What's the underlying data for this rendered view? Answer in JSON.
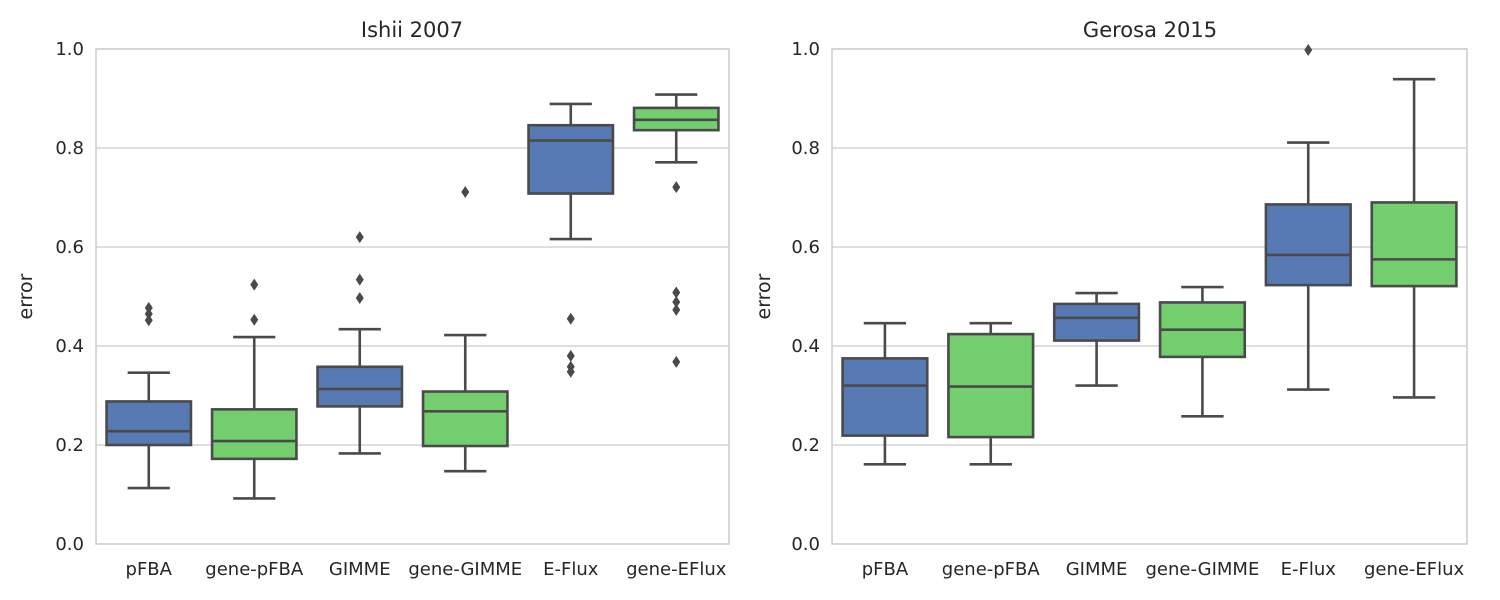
{
  "chart_data": [
    {
      "type": "box",
      "title": "Ishii 2007",
      "xlabel": "",
      "ylabel": "error",
      "ylim": [
        0,
        1
      ],
      "yticks": [
        "0.0",
        "0.2",
        "0.4",
        "0.6",
        "0.8",
        "1.0"
      ],
      "grid": "horizontal",
      "categories": [
        "pFBA",
        "gene-pFBA",
        "GIMME",
        "gene-GIMME",
        "E-Flux",
        "gene-EFlux"
      ],
      "colors": [
        "#4c72b0",
        "#6acc65",
        "#4c72b0",
        "#6acc65",
        "#4c72b0",
        "#6acc65"
      ],
      "boxes": [
        {
          "whisker_low": 0.113,
          "q1": 0.2,
          "median": 0.228,
          "q3": 0.288,
          "whisker_high": 0.346,
          "outliers": [
            0.452,
            0.465,
            0.477
          ]
        },
        {
          "whisker_low": 0.092,
          "q1": 0.172,
          "median": 0.208,
          "q3": 0.272,
          "whisker_high": 0.418,
          "outliers": [
            0.453,
            0.524
          ]
        },
        {
          "whisker_low": 0.183,
          "q1": 0.278,
          "median": 0.313,
          "q3": 0.358,
          "whisker_high": 0.434,
          "outliers": [
            0.497,
            0.534,
            0.62
          ]
        },
        {
          "whisker_low": 0.147,
          "q1": 0.198,
          "median": 0.268,
          "q3": 0.308,
          "whisker_high": 0.422,
          "outliers": [
            0.711
          ]
        },
        {
          "whisker_low": 0.616,
          "q1": 0.708,
          "median": 0.815,
          "q3": 0.846,
          "whisker_high": 0.889,
          "outliers": [
            0.348,
            0.358,
            0.38,
            0.455
          ]
        },
        {
          "whisker_low": 0.771,
          "q1": 0.836,
          "median": 0.857,
          "q3": 0.881,
          "whisker_high": 0.908,
          "outliers": [
            0.368,
            0.473,
            0.489,
            0.508,
            0.721
          ]
        }
      ]
    },
    {
      "type": "box",
      "title": "Gerosa 2015",
      "xlabel": "",
      "ylabel": "error",
      "ylim": [
        0,
        1
      ],
      "yticks": [
        "0.0",
        "0.2",
        "0.4",
        "0.6",
        "0.8",
        "1.0"
      ],
      "grid": "horizontal",
      "categories": [
        "pFBA",
        "gene-pFBA",
        "GIMME",
        "gene-GIMME",
        "E-Flux",
        "gene-EFlux"
      ],
      "colors": [
        "#4c72b0",
        "#6acc65",
        "#4c72b0",
        "#6acc65",
        "#4c72b0",
        "#6acc65"
      ],
      "boxes": [
        {
          "whisker_low": 0.161,
          "q1": 0.219,
          "median": 0.32,
          "q3": 0.375,
          "whisker_high": 0.446,
          "outliers": []
        },
        {
          "whisker_low": 0.161,
          "q1": 0.216,
          "median": 0.318,
          "q3": 0.424,
          "whisker_high": 0.446,
          "outliers": []
        },
        {
          "whisker_low": 0.32,
          "q1": 0.411,
          "median": 0.457,
          "q3": 0.485,
          "whisker_high": 0.507,
          "outliers": []
        },
        {
          "whisker_low": 0.258,
          "q1": 0.378,
          "median": 0.433,
          "q3": 0.488,
          "whisker_high": 0.519,
          "outliers": []
        },
        {
          "whisker_low": 0.312,
          "q1": 0.523,
          "median": 0.584,
          "q3": 0.686,
          "whisker_high": 0.811,
          "outliers": [
            0.998
          ]
        },
        {
          "whisker_low": 0.296,
          "q1": 0.521,
          "median": 0.575,
          "q3": 0.69,
          "whisker_high": 0.939,
          "outliers": []
        }
      ]
    }
  ]
}
